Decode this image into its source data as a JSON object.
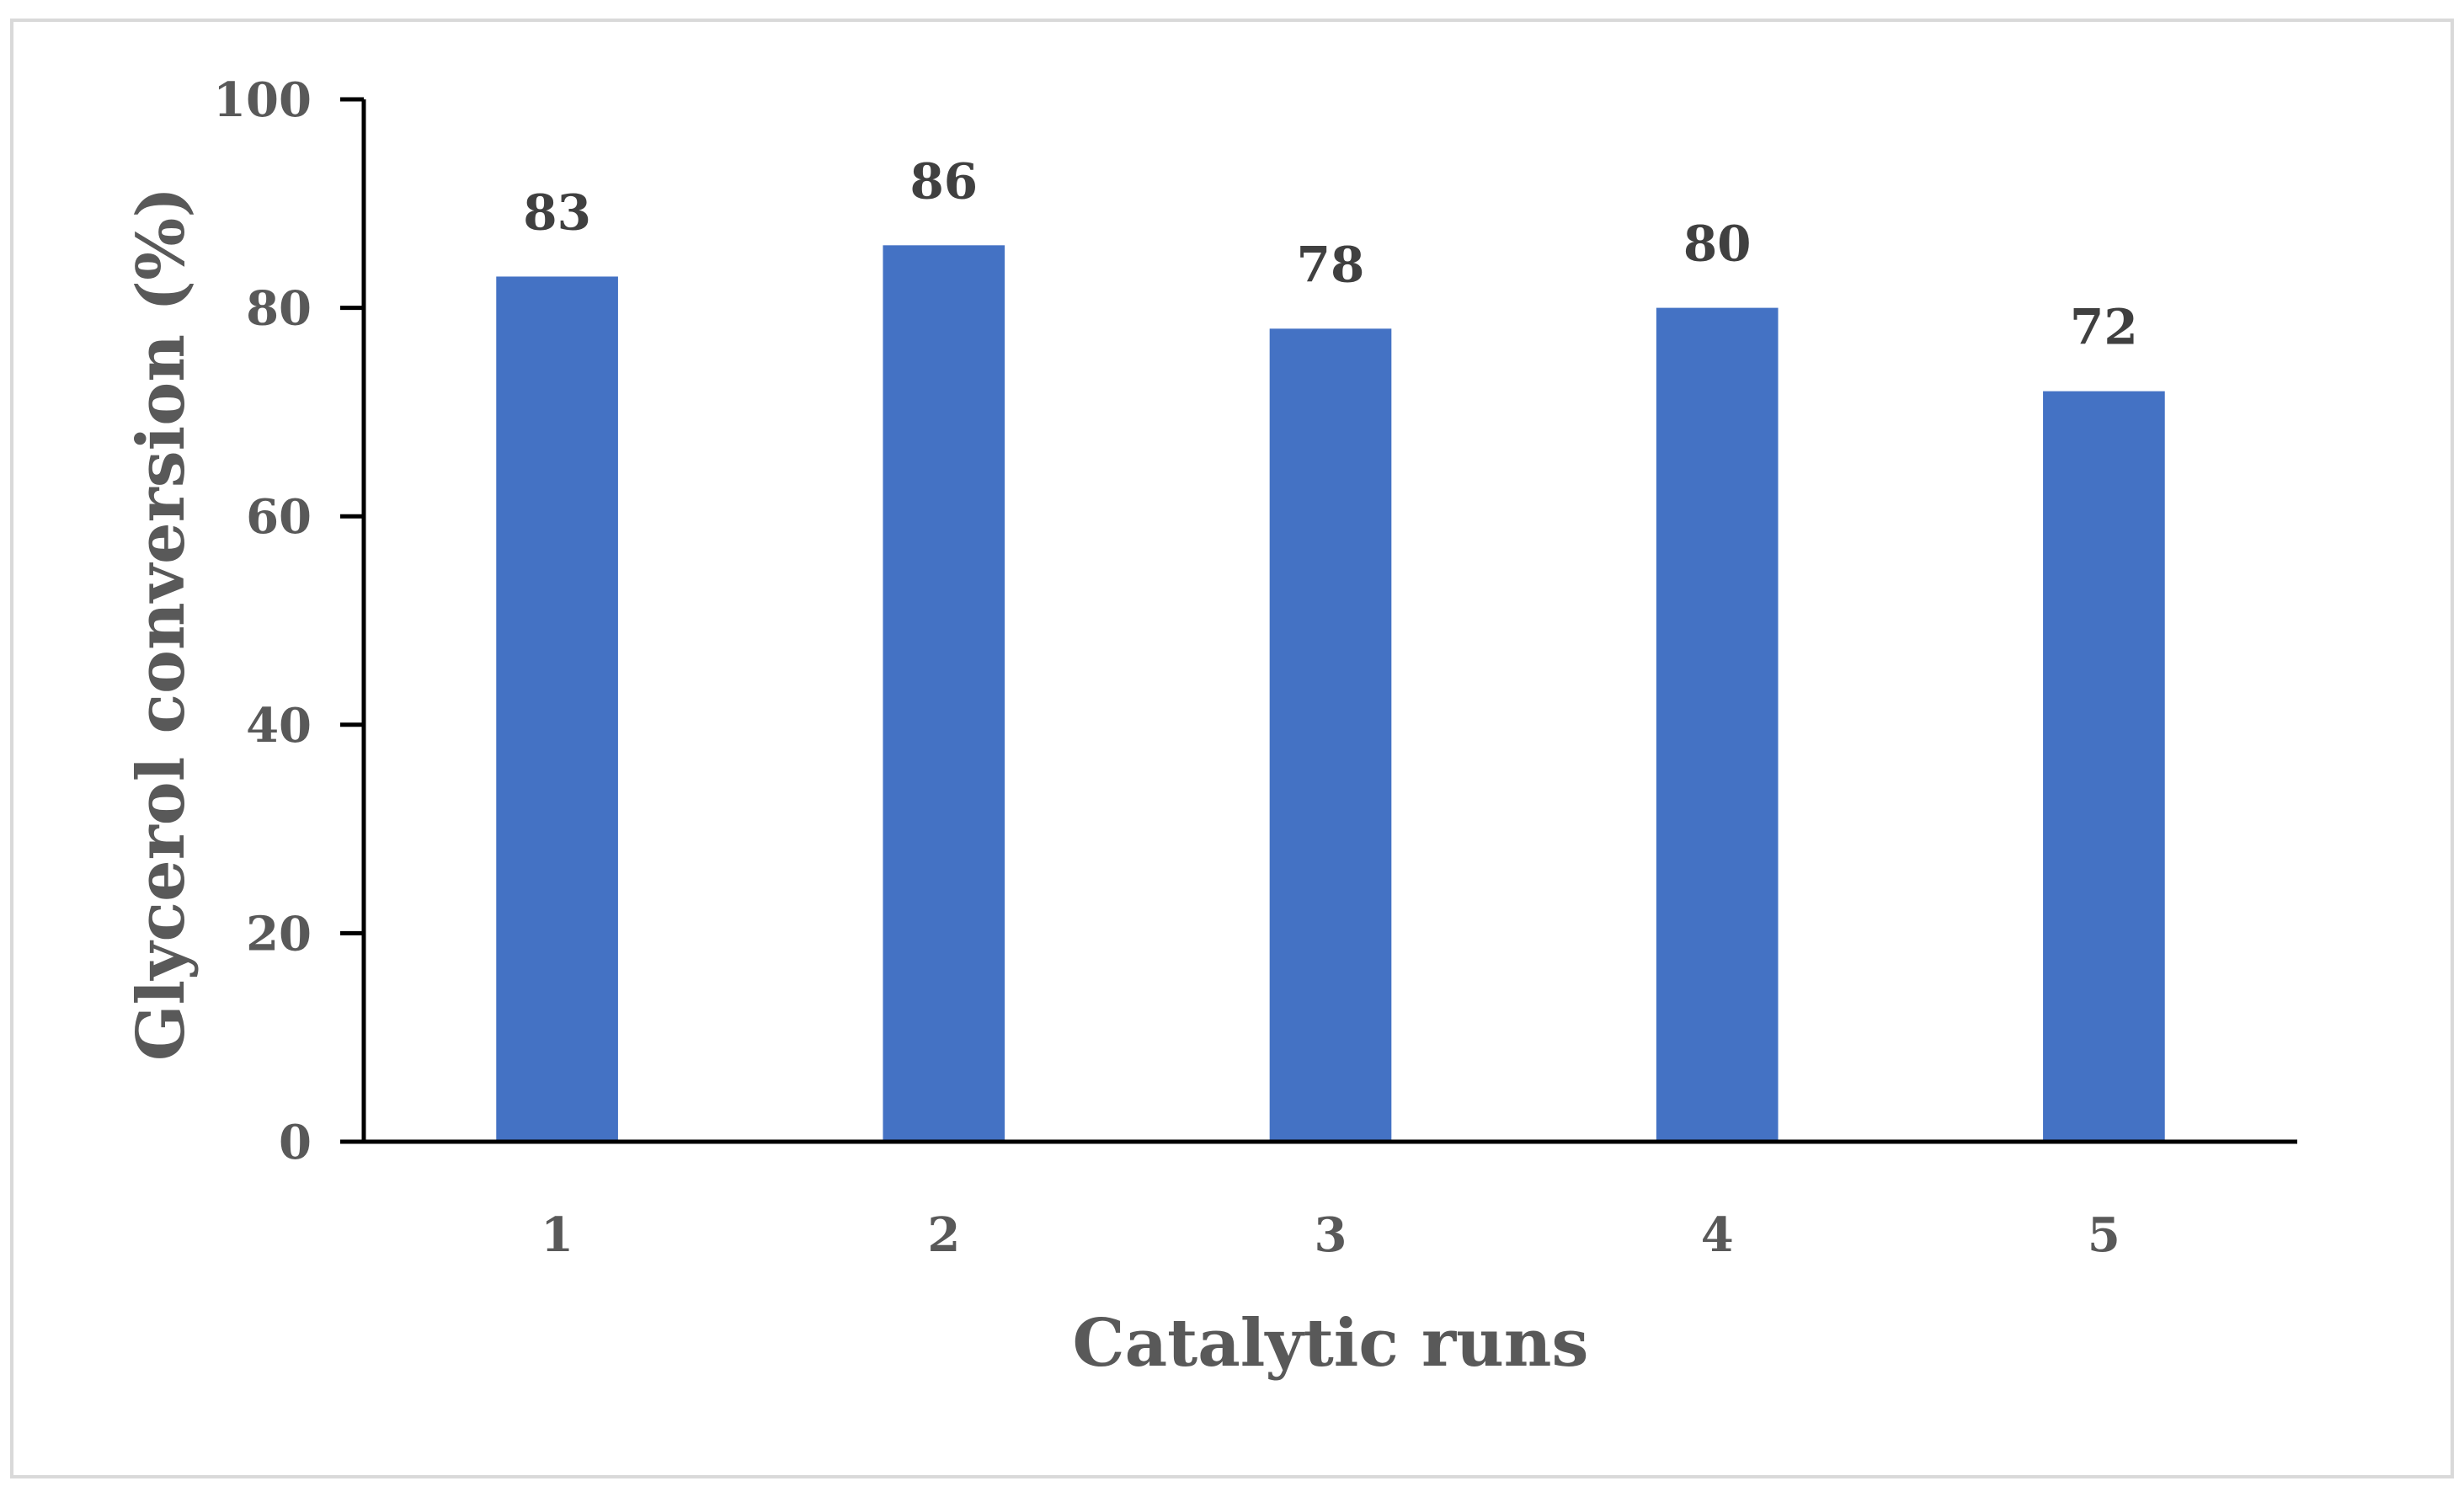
{
  "chart_data": {
    "type": "bar",
    "categories": [
      "1",
      "2",
      "3",
      "4",
      "5"
    ],
    "values": [
      83,
      86,
      78,
      80,
      72
    ],
    "data_labels": [
      "83",
      "86",
      "78",
      "80",
      "72"
    ],
    "xlabel": "Catalytic runs",
    "ylabel": "Glycerol conversion (%)",
    "ylim": [
      0,
      100
    ],
    "yticks": [
      "0",
      "20",
      "40",
      "60",
      "80",
      "100"
    ],
    "grid": false,
    "legend": "none",
    "colors": {
      "bar": "#4472C4",
      "axis": "#000000",
      "frame": "#D9D9D9",
      "tick_text": "#595959",
      "data_label_text": "#404040"
    }
  }
}
